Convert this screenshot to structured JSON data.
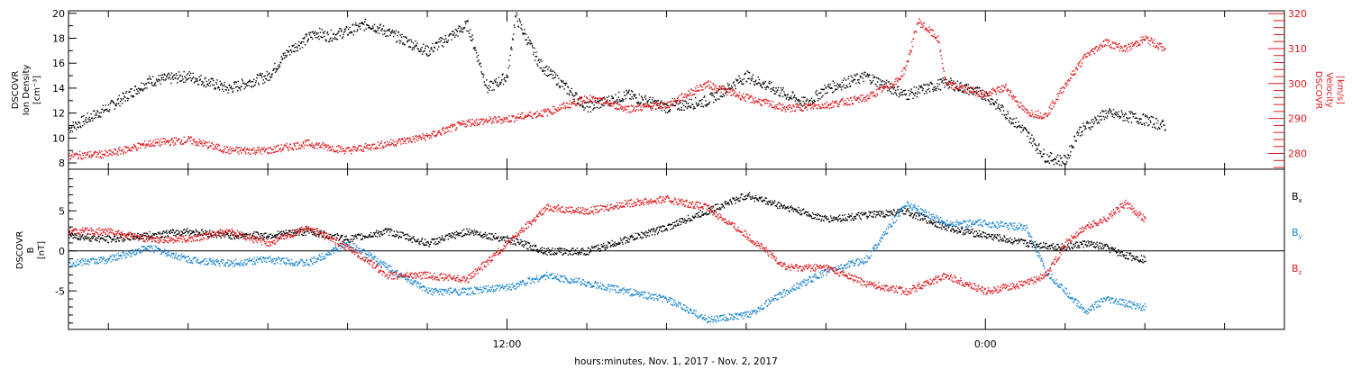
{
  "colors": {
    "black": "#000000",
    "red": "#e1171b",
    "blue": "#1a86d3"
  },
  "x_axis": {
    "label": "hours:minutes, Nov.  1, 2017 - Nov.  2, 2017",
    "tick_labels": [
      {
        "hour": 12,
        "label": "12:00"
      },
      {
        "hour": 24,
        "label": "0:00"
      }
    ],
    "range_hours": [
      1,
      31.5
    ],
    "minor_tick_step_hours": 2
  },
  "chart_data": [
    {
      "type": "scatter",
      "panel": "plasma",
      "left_axis": {
        "label_lines": [
          "DSCOVR",
          "Ion Density",
          "[cm⁻³]"
        ],
        "ylim": [
          7.5,
          20.2
        ],
        "ticks": [
          8,
          10,
          12,
          14,
          16,
          18,
          20
        ],
        "tick_labels": [
          "8",
          "10",
          "12",
          "14",
          "16",
          "18",
          "20"
        ]
      },
      "right_axis": {
        "label_lines": [
          "DSCOVR",
          "Velocity",
          "[km/s]"
        ],
        "ylim": [
          275.5,
          320.8
        ],
        "ticks": [
          280,
          290,
          300,
          310,
          320
        ],
        "tick_labels": [
          "280",
          "290",
          "300",
          "310",
          "320"
        ],
        "color": "#e1171b"
      },
      "series": [
        {
          "axis": "left",
          "color": "#000000",
          "x": [
            1.0,
            2.0,
            3.0,
            4.0,
            5.0,
            6.0,
            6.5,
            7.2,
            7.5,
            8.0,
            8.5,
            9.0,
            10.0,
            11.0,
            11.5,
            12.0,
            12.2,
            12.8,
            14.0,
            15.0,
            16.0,
            17.0,
            18.0,
            18.8,
            19.5,
            20.0,
            21.0,
            22.0,
            23.0,
            24.0,
            24.5,
            25.0,
            25.5,
            26.0,
            26.3,
            27.0,
            27.5,
            28.0,
            28.5
          ],
          "y": [
            10.8,
            12.5,
            14.6,
            15.0,
            14.0,
            15.0,
            17.0,
            18.5,
            18.2,
            18.6,
            19.2,
            18.5,
            17.0,
            19.1,
            14.0,
            15.0,
            19.8,
            16.0,
            12.5,
            13.5,
            12.5,
            13.0,
            15.0,
            13.8,
            12.8,
            14.0,
            15.0,
            13.5,
            14.5,
            13.5,
            12.0,
            10.5,
            8.5,
            8.2,
            10.5,
            12.0,
            11.8,
            11.5,
            11.0
          ]
        },
        {
          "axis": "right",
          "color": "#e1171b",
          "x": [
            1.0,
            2.0,
            3.0,
            4.0,
            5.0,
            6.0,
            7.0,
            8.0,
            9.0,
            10.0,
            11.0,
            12.0,
            13.0,
            14.0,
            15.0,
            16.0,
            17.0,
            18.0,
            19.0,
            20.0,
            21.0,
            21.8,
            22.0,
            22.3,
            22.8,
            23.0,
            24.0,
            24.5,
            25.0,
            25.5,
            26.0,
            26.5,
            27.0,
            27.5,
            28.0,
            28.5
          ],
          "y": [
            279.5,
            280.0,
            283.0,
            284.0,
            281.0,
            281.0,
            283.0,
            281.0,
            283.0,
            285.0,
            289.0,
            290.0,
            292.0,
            296.0,
            293.0,
            294.0,
            300.0,
            296.0,
            293.0,
            294.0,
            296.0,
            301.0,
            305.0,
            318.0,
            313.0,
            300.0,
            297.0,
            299.0,
            292.0,
            291.0,
            300.0,
            308.0,
            312.0,
            310.0,
            313.0,
            310.0
          ]
        }
      ]
    },
    {
      "type": "scatter",
      "panel": "magnetic",
      "left_axis": {
        "label_lines": [
          "DSCOVR",
          "B",
          "[nT]"
        ],
        "ylim": [
          -9.8,
          10.2
        ],
        "ticks": [
          -5,
          0,
          5
        ],
        "tick_labels": [
          "-5",
          "0",
          "5"
        ]
      },
      "zero_line": 0,
      "legend": {
        "position": "right",
        "items": [
          {
            "label": "Bx",
            "main": "B",
            "sub": "x",
            "color": "#000000"
          },
          {
            "label": "By",
            "main": "B",
            "sub": "y",
            "color": "#1a86d3"
          },
          {
            "label": "Bz",
            "main": "B",
            "sub": "z",
            "color": "#e1171b"
          }
        ]
      },
      "series": [
        {
          "name": "Bx",
          "color": "#000000",
          "x": [
            1.0,
            2.0,
            3.0,
            4.0,
            5.0,
            6.0,
            7.0,
            8.0,
            9.0,
            10.0,
            11.0,
            12.0,
            13.0,
            14.0,
            15.0,
            16.0,
            17.0,
            18.0,
            19.0,
            20.0,
            21.0,
            22.0,
            23.0,
            24.0,
            25.0,
            26.0,
            26.5,
            27.0,
            27.5,
            28.0
          ],
          "y": [
            2.0,
            1.5,
            2.0,
            2.5,
            2.0,
            2.0,
            2.5,
            1.5,
            2.5,
            1.0,
            2.5,
            1.5,
            0.0,
            0.0,
            1.5,
            3.0,
            5.0,
            7.0,
            5.5,
            4.0,
            4.5,
            5.0,
            3.0,
            2.0,
            1.0,
            0.5,
            1.0,
            0.5,
            -0.5,
            -1.0
          ]
        },
        {
          "name": "By",
          "color": "#1a86d3",
          "x": [
            1.0,
            2.0,
            3.0,
            4.0,
            5.0,
            6.0,
            7.0,
            8.0,
            9.0,
            10.0,
            11.0,
            12.0,
            13.0,
            14.0,
            15.0,
            16.0,
            17.0,
            18.0,
            19.0,
            20.0,
            21.0,
            22.0,
            23.0,
            24.0,
            25.0,
            25.5,
            26.0,
            26.5,
            27.0,
            28.0
          ],
          "y": [
            -1.5,
            -1.0,
            0.5,
            -1.0,
            -1.5,
            -1.0,
            -1.5,
            1.0,
            -2.0,
            -5.0,
            -5.0,
            -4.5,
            -3.0,
            -4.0,
            -5.0,
            -6.0,
            -8.5,
            -8.0,
            -5.0,
            -2.5,
            -1.0,
            6.0,
            3.5,
            3.5,
            3.0,
            -2.5,
            -5.0,
            -7.5,
            -6.0,
            -7.0
          ]
        },
        {
          "name": "Bz",
          "color": "#e1171b",
          "x": [
            1.0,
            2.0,
            3.0,
            4.0,
            5.0,
            6.0,
            7.0,
            8.0,
            9.0,
            10.0,
            11.0,
            12.0,
            13.0,
            14.0,
            15.0,
            16.0,
            17.0,
            18.0,
            19.0,
            20.0,
            21.0,
            22.0,
            23.0,
            24.0,
            25.0,
            25.5,
            26.0,
            26.5,
            27.0,
            27.5,
            28.0
          ],
          "y": [
            2.5,
            2.5,
            1.5,
            1.5,
            2.5,
            1.0,
            3.0,
            0.5,
            -3.0,
            -3.0,
            -3.5,
            1.0,
            5.5,
            5.0,
            6.0,
            6.5,
            5.5,
            2.0,
            -2.0,
            -2.0,
            -4.0,
            -5.0,
            -3.0,
            -5.0,
            -4.0,
            -3.0,
            1.0,
            3.0,
            4.0,
            6.0,
            4.0
          ]
        }
      ]
    }
  ]
}
